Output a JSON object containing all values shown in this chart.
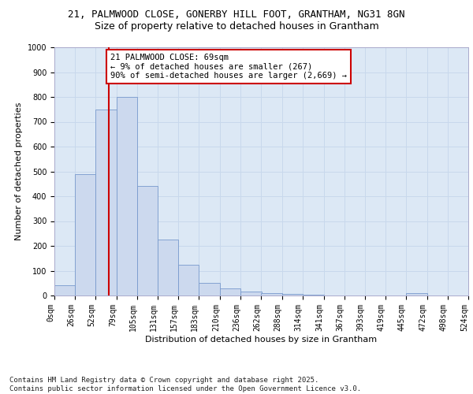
{
  "title_line1": "21, PALMWOOD CLOSE, GONERBY HILL FOOT, GRANTHAM, NG31 8GN",
  "title_line2": "Size of property relative to detached houses in Grantham",
  "xlabel": "Distribution of detached houses by size in Grantham",
  "ylabel": "Number of detached properties",
  "bin_edges": [
    0,
    26,
    52,
    79,
    105,
    131,
    157,
    183,
    210,
    236,
    262,
    288,
    314,
    341,
    367,
    393,
    419,
    445,
    472,
    498,
    524
  ],
  "bar_heights": [
    42,
    490,
    750,
    800,
    440,
    225,
    125,
    50,
    28,
    15,
    8,
    5,
    2,
    0,
    0,
    0,
    0,
    8,
    0,
    0
  ],
  "bar_color": "#ccd9ee",
  "bar_edge_color": "#7799cc",
  "property_size": 69,
  "property_line_color": "#cc0000",
  "annotation_text": "21 PALMWOOD CLOSE: 69sqm\n← 9% of detached houses are smaller (267)\n90% of semi-detached houses are larger (2,669) →",
  "annotation_box_facecolor": "#ffffff",
  "annotation_box_edgecolor": "#cc0000",
  "ylim": [
    0,
    1000
  ],
  "yticks": [
    0,
    100,
    200,
    300,
    400,
    500,
    600,
    700,
    800,
    900,
    1000
  ],
  "grid_color": "#c8d8ec",
  "plot_bg_color": "#dce8f5",
  "fig_bg_color": "#ffffff",
  "footer_text": "Contains HM Land Registry data © Crown copyright and database right 2025.\nContains public sector information licensed under the Open Government Licence v3.0.",
  "title_fontsize": 9,
  "subtitle_fontsize": 9,
  "tick_label_fontsize": 7,
  "ylabel_fontsize": 8,
  "xlabel_fontsize": 8,
  "annotation_fontsize": 7.5,
  "footer_fontsize": 6.5
}
